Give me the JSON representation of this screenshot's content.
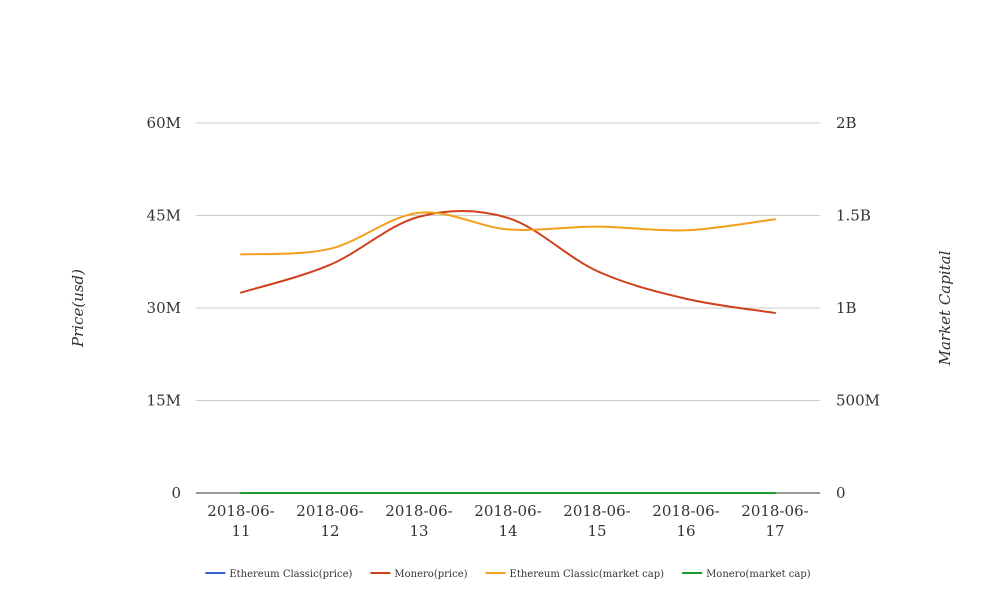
{
  "chart_data": {
    "type": "line",
    "categories": [
      "2018-06-11",
      "2018-06-12",
      "2018-06-13",
      "2018-06-14",
      "2018-06-15",
      "2018-06-16",
      "2018-06-17"
    ],
    "category_labels": [
      [
        "2018-06-",
        "11"
      ],
      [
        "2018-06-",
        "12"
      ],
      [
        "2018-06-",
        "13"
      ],
      [
        "2018-06-",
        "14"
      ],
      [
        "2018-06-",
        "15"
      ],
      [
        "2018-06-",
        "16"
      ],
      [
        "2018-06-",
        "17"
      ]
    ],
    "y_left": {
      "label": "Price(usd)",
      "ylim": [
        0,
        60000000
      ],
      "ticks": [
        0,
        15000000,
        30000000,
        45000000,
        60000000
      ],
      "tick_labels": [
        "0",
        "15M",
        "30M",
        "45M",
        "60M"
      ]
    },
    "y_right": {
      "label": "Market Capital",
      "ylim": [
        0,
        2000000000
      ],
      "ticks": [
        0,
        500000000,
        1000000000,
        1500000000,
        2000000000
      ],
      "tick_labels": [
        "0",
        "500M",
        "1B",
        "1.5B",
        "2B"
      ]
    },
    "grid": true,
    "legend_position": "bottom",
    "series": [
      {
        "name": "Ethereum Classic(price)",
        "axis": "left",
        "color": "#3366cc",
        "values": [
          0,
          0,
          0,
          0,
          0,
          0,
          0
        ]
      },
      {
        "name": "Monero(price)",
        "axis": "left",
        "color": "#d0401a",
        "values": [
          32500000,
          37000000,
          44800000,
          44600000,
          36000000,
          31500000,
          29200000
        ]
      },
      {
        "name": "Ethereum Classic(market cap)",
        "axis": "right",
        "color": "#f2a01c",
        "values": [
          1290000000,
          1320000000,
          1515000000,
          1425000000,
          1440000000,
          1420000000,
          1480000000
        ]
      },
      {
        "name": "Monero(market cap)",
        "axis": "right",
        "color": "#1a9a2a",
        "values": [
          0,
          0,
          0,
          0,
          0,
          0,
          0
        ]
      }
    ]
  }
}
